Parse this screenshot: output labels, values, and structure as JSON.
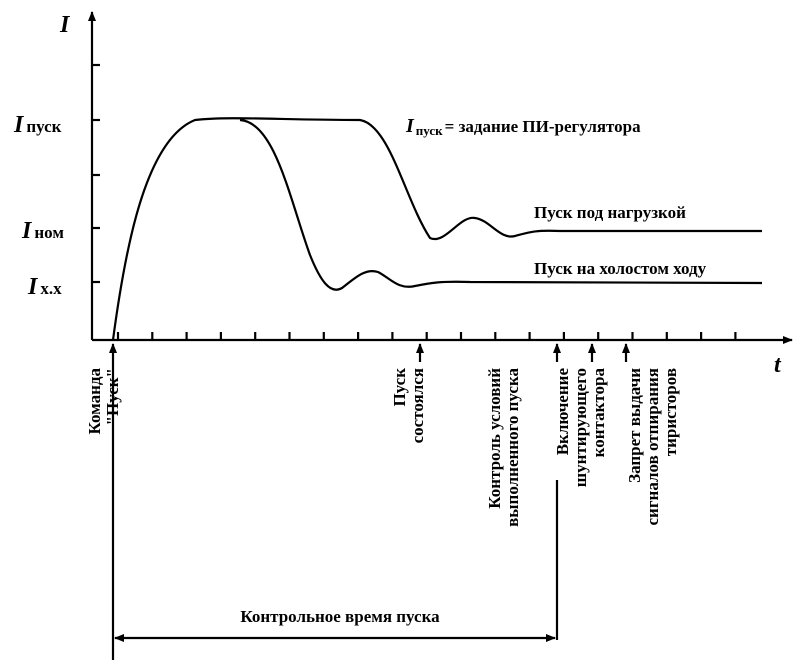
{
  "axes": {
    "y_label": "I",
    "x_label": "t"
  },
  "levels": [
    {
      "symbol": "I",
      "sub": "пуск"
    },
    {
      "symbol": "I",
      "sub": "ном"
    },
    {
      "symbol": "I",
      "sub": "х.х"
    }
  ],
  "annotation": {
    "symbol": "I",
    "sub": "пуск",
    "text": "= задание ПИ-регулятора"
  },
  "curves": [
    {
      "label": "Пуск под нагрузкой"
    },
    {
      "label": "Пуск на холостом ходу"
    }
  ],
  "events": [
    {
      "lines": [
        "Команда",
        "\"Пуск\""
      ]
    },
    {
      "lines": [
        "Пуск",
        "состоялся"
      ]
    },
    {
      "lines": [
        "Контроль условий",
        "выполненного пуска"
      ]
    },
    {
      "lines": [
        "Включение",
        "шунтирующего",
        "контактора"
      ]
    },
    {
      "lines": [
        "Запрет выдачи",
        "сигналов отпирания",
        "тиристоров"
      ]
    }
  ],
  "interval": {
    "label": "Контрольное время пуска"
  }
}
